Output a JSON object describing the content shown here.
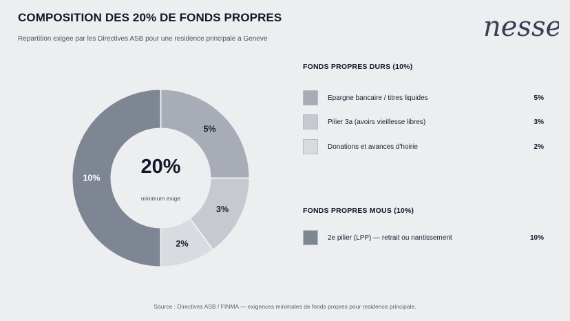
{
  "header": {
    "title": "COMPOSITION DES 20% DE FONDS PROPRES",
    "subtitle": "Repartition exigee par les Directives ASB pour une residence principale a Geneve",
    "logo_text": "nessell"
  },
  "chart_data": {
    "type": "pie",
    "title": "COMPOSITION DES 20% DE FONDS PROPRES",
    "center_value": "20%",
    "center_note": "minimum exige",
    "categories": [
      "Epargne bancaire / titres liquides",
      "Pilier 3a (avoirs vieillesse libres)",
      "Donations et avances d'hoirie",
      "2e pilier (LPP) — retrait ou nantissement"
    ],
    "values": [
      5,
      3,
      2,
      10
    ],
    "labels": [
      "5%",
      "3%",
      "2%",
      "10%"
    ],
    "colors": [
      "#a7acb6",
      "#c6c9d0",
      "#d9dbe0",
      "#7e8593"
    ]
  },
  "legend": {
    "hard": {
      "title": "FONDS PROPRES DURS  (10%)",
      "items": [
        {
          "label": "Epargne bancaire / titres liquides",
          "value": "5%",
          "color": "#a7acb6"
        },
        {
          "label": "Pilier 3a (avoirs vieillesse libres)",
          "value": "3%",
          "color": "#c6c9d0"
        },
        {
          "label": "Donations et avances d'hoirie",
          "value": "2%",
          "color": "#d9dbe0"
        }
      ]
    },
    "soft": {
      "title": "FONDS PROPRES MOUS  (10%)",
      "items": [
        {
          "label": "2e pilier (LPP) — retrait ou nantissement",
          "value": "10%",
          "color": "#7e8593"
        }
      ]
    }
  },
  "footer": {
    "source": "Source : Directives ASB / FINMA — exigences minimales de fonds propres pour residence principale."
  }
}
